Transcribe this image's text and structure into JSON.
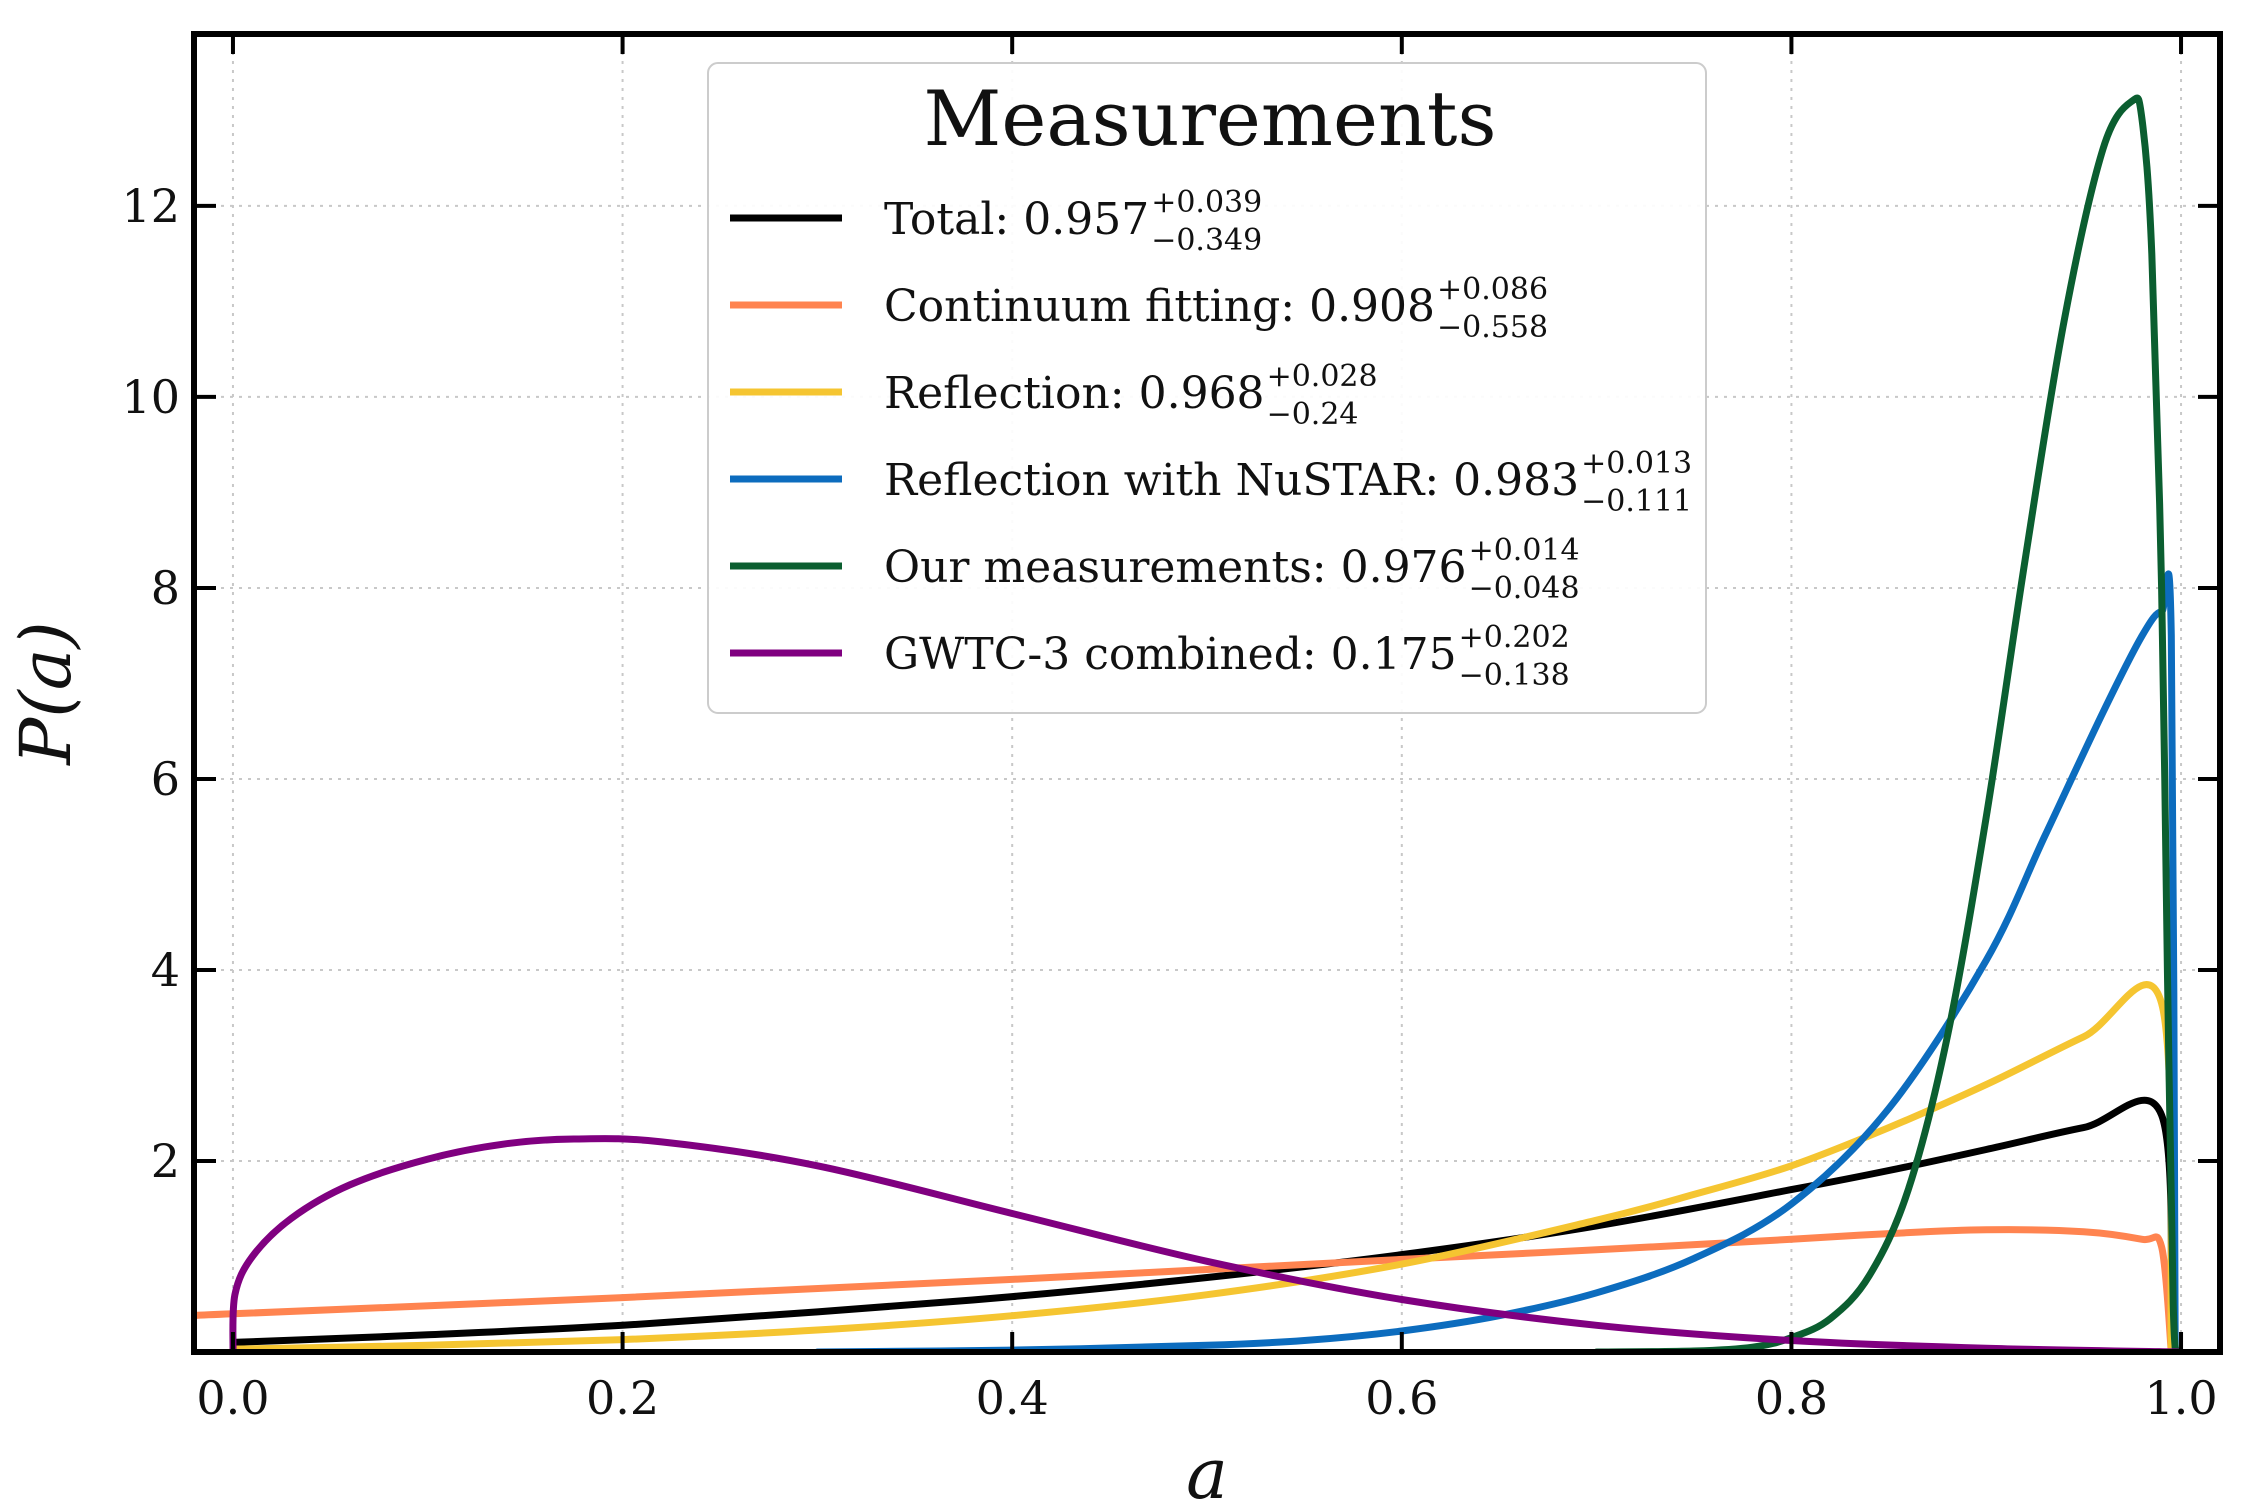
{
  "chart_data": {
    "type": "line",
    "title": "",
    "xlabel": "a",
    "ylabel": "P(a)",
    "xlim": [
      -0.02,
      1.02
    ],
    "ylim": [
      0,
      13.8
    ],
    "x_ticks": [
      0.0,
      0.2,
      0.4,
      0.6,
      0.8,
      1.0
    ],
    "x_tick_labels": [
      "0.0",
      "0.2",
      "0.4",
      "0.6",
      "0.8",
      "1.0"
    ],
    "y_ticks": [
      2,
      4,
      6,
      8,
      10,
      12
    ],
    "y_tick_labels": [
      "2",
      "4",
      "6",
      "8",
      "10",
      "12"
    ],
    "grid": true,
    "legend": {
      "title": "Measurements",
      "placement": "top-center"
    },
    "series": [
      {
        "name": "Total",
        "value": "0.957",
        "upper": "+0.039",
        "lower": "−0.349",
        "color": "#000000",
        "points": [
          [
            0.0,
            0.1
          ],
          [
            0.1,
            0.18
          ],
          [
            0.2,
            0.28
          ],
          [
            0.3,
            0.42
          ],
          [
            0.4,
            0.58
          ],
          [
            0.5,
            0.78
          ],
          [
            0.6,
            1.02
          ],
          [
            0.7,
            1.32
          ],
          [
            0.8,
            1.7
          ],
          [
            0.85,
            1.9
          ],
          [
            0.9,
            2.12
          ],
          [
            0.95,
            2.35
          ],
          [
            0.99,
            2.48
          ],
          [
            0.995,
            0.0
          ]
        ]
      },
      {
        "name": "Continuum fitting",
        "value": "0.908",
        "upper": "+0.086",
        "lower": "−0.558",
        "color": "#ff8450",
        "points": [
          [
            -0.02,
            0.38
          ],
          [
            0.0,
            0.4
          ],
          [
            0.2,
            0.57
          ],
          [
            0.4,
            0.76
          ],
          [
            0.6,
            0.97
          ],
          [
            0.7,
            1.07
          ],
          [
            0.8,
            1.18
          ],
          [
            0.85,
            1.24
          ],
          [
            0.9,
            1.28
          ],
          [
            0.95,
            1.26
          ],
          [
            0.98,
            1.18
          ],
          [
            0.99,
            1.1
          ],
          [
            0.995,
            0.0
          ]
        ]
      },
      {
        "name": "Reflection",
        "value": "0.968",
        "upper": "+0.028",
        "lower": "−0.24",
        "color": "#f5c531",
        "points": [
          [
            0.0,
            0.03
          ],
          [
            0.1,
            0.07
          ],
          [
            0.2,
            0.13
          ],
          [
            0.3,
            0.23
          ],
          [
            0.4,
            0.38
          ],
          [
            0.5,
            0.6
          ],
          [
            0.6,
            0.92
          ],
          [
            0.7,
            1.38
          ],
          [
            0.75,
            1.65
          ],
          [
            0.8,
            1.95
          ],
          [
            0.85,
            2.35
          ],
          [
            0.9,
            2.8
          ],
          [
            0.95,
            3.3
          ],
          [
            0.99,
            3.65
          ],
          [
            0.995,
            0.0
          ]
        ]
      },
      {
        "name": "Reflection with NuSTAR",
        "value": "0.983",
        "upper": "+0.013",
        "lower": "−0.111",
        "color": "#0c6cbe",
        "points": [
          [
            0.3,
            0.0
          ],
          [
            0.4,
            0.02
          ],
          [
            0.5,
            0.07
          ],
          [
            0.55,
            0.12
          ],
          [
            0.6,
            0.22
          ],
          [
            0.65,
            0.38
          ],
          [
            0.7,
            0.62
          ],
          [
            0.75,
            0.98
          ],
          [
            0.8,
            1.55
          ],
          [
            0.85,
            2.55
          ],
          [
            0.9,
            4.1
          ],
          [
            0.93,
            5.4
          ],
          [
            0.96,
            6.7
          ],
          [
            0.98,
            7.5
          ],
          [
            0.99,
            7.75
          ],
          [
            0.995,
            7.5
          ],
          [
            0.997,
            0.0
          ]
        ]
      },
      {
        "name": "Our measurements",
        "value": "0.976",
        "upper": "+0.014",
        "lower": "−0.048",
        "color": "#0b5e30",
        "points": [
          [
            0.7,
            0.0
          ],
          [
            0.75,
            0.01
          ],
          [
            0.78,
            0.05
          ],
          [
            0.8,
            0.15
          ],
          [
            0.82,
            0.35
          ],
          [
            0.84,
            0.8
          ],
          [
            0.86,
            1.7
          ],
          [
            0.88,
            3.3
          ],
          [
            0.9,
            5.6
          ],
          [
            0.92,
            8.3
          ],
          [
            0.94,
            10.8
          ],
          [
            0.96,
            12.6
          ],
          [
            0.975,
            13.1
          ],
          [
            0.98,
            12.9
          ],
          [
            0.985,
            11.5
          ],
          [
            0.99,
            8.0
          ],
          [
            0.993,
            4.0
          ],
          [
            0.996,
            0.5
          ],
          [
            0.998,
            0.0
          ]
        ]
      },
      {
        "name": "GWTC-3 combined",
        "value": "0.175",
        "upper": "+0.202",
        "lower": "−0.138",
        "color": "#800080",
        "points": [
          [
            0.0,
            0.0
          ],
          [
            0.001,
            0.6
          ],
          [
            0.01,
            1.0
          ],
          [
            0.03,
            1.4
          ],
          [
            0.06,
            1.75
          ],
          [
            0.1,
            2.02
          ],
          [
            0.14,
            2.18
          ],
          [
            0.175,
            2.23
          ],
          [
            0.22,
            2.2
          ],
          [
            0.3,
            1.95
          ],
          [
            0.4,
            1.45
          ],
          [
            0.5,
            0.95
          ],
          [
            0.6,
            0.55
          ],
          [
            0.7,
            0.28
          ],
          [
            0.8,
            0.12
          ],
          [
            0.9,
            0.04
          ],
          [
            1.0,
            0.0
          ]
        ]
      }
    ]
  }
}
